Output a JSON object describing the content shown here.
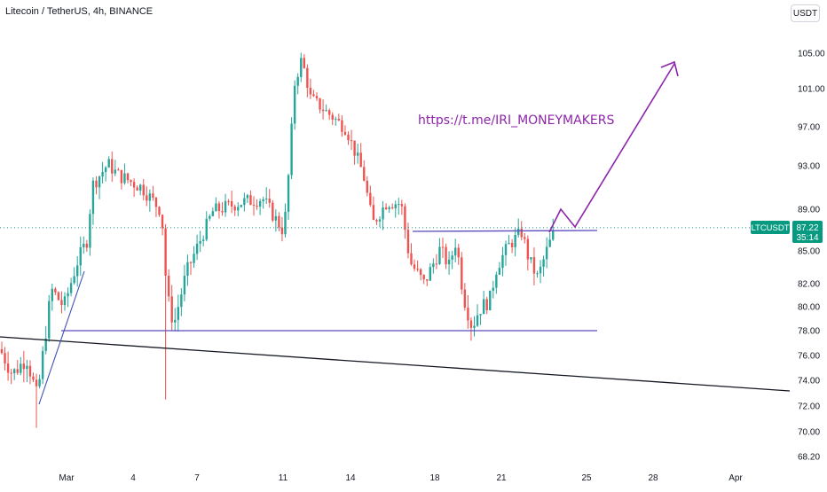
{
  "header": {
    "symbol_title": "Litecoin / TetherUS, 4h, BINANCE",
    "currency": "USDT"
  },
  "price_tag": {
    "symbol": "LTCUSDT",
    "price": "87.22",
    "countdown": "35:14",
    "color": "#089981"
  },
  "annotation": {
    "text": "https://t.me/IRI_MONEYMAKERS",
    "color": "#8e24aa"
  },
  "colors": {
    "up": "#26a69a",
    "down": "#ef5350",
    "drawing_line": "#5b4bbd",
    "trend_line": "#131722",
    "arrow": "#8e24aa"
  },
  "chart_data": {
    "type": "candlestick",
    "title": "Litecoin / TetherUS, 4h, BINANCE",
    "symbol": "LTCUSDT",
    "timeframe": "4h",
    "y_axis": {
      "scale": "log",
      "ticks": [
        "105.00",
        "101.00",
        "97.00",
        "93.00",
        "89.00",
        "85.00",
        "82.00",
        "80.00",
        "78.00",
        "76.00",
        "74.00",
        "72.00",
        "70.00",
        "68.20"
      ]
    },
    "x_axis": {
      "ticks": [
        "Mar",
        "4",
        "7",
        "11",
        "14",
        "18",
        "21",
        "25",
        "28",
        "Apr"
      ]
    },
    "ohlc_approx_lows_highs": {
      "start_close": 76.5,
      "low_early": 70.3,
      "rally_high": 94.5,
      "dip_low": 72.0,
      "peak_high": 105.5,
      "range_low": 77.3,
      "range_high": 87.5,
      "last": 87.22
    },
    "drawings": {
      "resistance_level": 86.8,
      "support_level": 78.0,
      "descending_trendline": [
        78.0,
        73.0
      ],
      "projection_target_price": 103.5
    },
    "grid": false,
    "legend": "none"
  }
}
